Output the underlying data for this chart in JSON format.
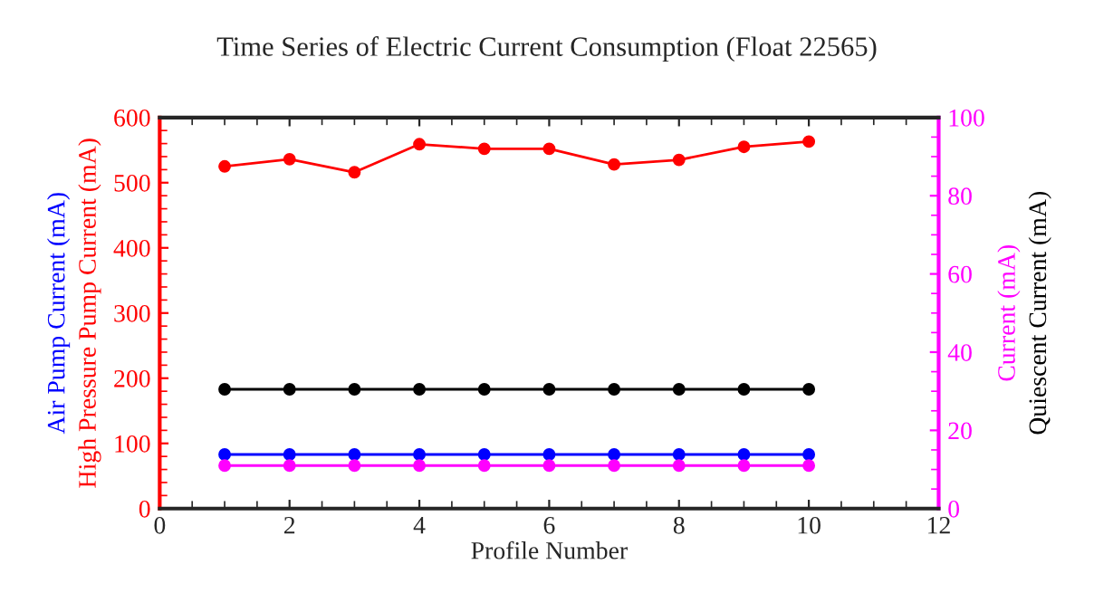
{
  "chart_data": {
    "type": "line",
    "title": "Time Series of Electric Current Consumption (Float 22565)",
    "xlabel": "Profile Number",
    "x": [
      1,
      2,
      3,
      4,
      5,
      6,
      7,
      8,
      9,
      10
    ],
    "series": [
      {
        "name": "High Pressure Pump Current (mA)",
        "color": "#ff0000",
        "values": [
          525,
          536,
          516,
          559,
          552,
          552,
          528,
          535,
          555,
          563
        ]
      },
      {
        "name": "Air Pump Current (mA)",
        "color": "#0000ff",
        "values": [
          83,
          83,
          83,
          83,
          83,
          83,
          83,
          83,
          83,
          83
        ]
      },
      {
        "name": "Quiescent Current (mA)",
        "color": "#000000",
        "axis": "y2",
        "values": [
          30.5,
          30.5,
          30.5,
          30.5,
          30.5,
          30.5,
          30.5,
          30.5,
          30.5,
          30.5
        ]
      },
      {
        "name": "Current (mA)",
        "color": "#ff00ff",
        "axis": "y2",
        "values": [
          11,
          11,
          11,
          11,
          11,
          11,
          11,
          11,
          11,
          11
        ]
      }
    ],
    "xlim": [
      0,
      12
    ],
    "xticks": [
      0,
      2,
      4,
      6,
      8,
      10,
      12
    ],
    "ylim": [
      0,
      600
    ],
    "yticks": [
      0,
      100,
      200,
      300,
      400,
      500,
      600
    ],
    "y2lim": [
      0,
      100
    ],
    "y2ticks": [
      0,
      20,
      40,
      60,
      80,
      100
    ],
    "marker": "circle",
    "line_style": "solid",
    "grid": false,
    "legend": "right"
  }
}
